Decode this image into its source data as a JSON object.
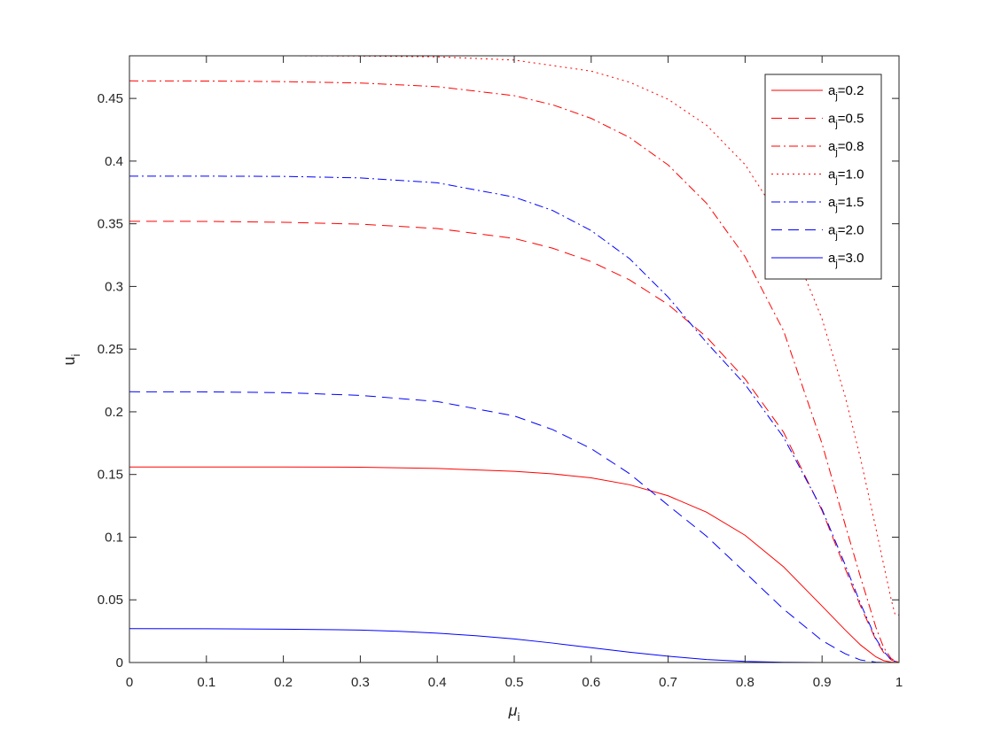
{
  "chart_data": {
    "type": "line",
    "title": "",
    "xlabel": "μ",
    "xlabel_sub": "i",
    "ylabel": "u",
    "ylabel_sub": "i",
    "xlim": [
      0,
      1
    ],
    "ylim": [
      0,
      0.484
    ],
    "grid": false,
    "legend_position": "top-right",
    "x_ticks": [
      0,
      0.1,
      0.2,
      0.3,
      0.4,
      0.5,
      0.6,
      0.7,
      0.8,
      0.9,
      1
    ],
    "x_tick_labels": [
      "0",
      "0.1",
      "0.2",
      "0.3",
      "0.4",
      "0.5",
      "0.6",
      "0.7",
      "0.8",
      "0.9",
      "1"
    ],
    "y_ticks": [
      0,
      0.05,
      0.1,
      0.15,
      0.2,
      0.25,
      0.3,
      0.35,
      0.4,
      0.45
    ],
    "y_tick_labels": [
      "0",
      "0.05",
      "0.1",
      "0.15",
      "0.2",
      "0.25",
      "0.3",
      "0.35",
      "0.4",
      "0.45"
    ],
    "series": [
      {
        "name": "a_j=0.2",
        "legend_prefix": "a",
        "legend_sub": "j",
        "legend_value": "=0.2",
        "color": "#ff0000",
        "dash": "solid",
        "x": [
          0,
          0.1,
          0.2,
          0.3,
          0.4,
          0.5,
          0.55,
          0.6,
          0.65,
          0.7,
          0.75,
          0.8,
          0.85,
          0.9,
          0.93,
          0.95,
          0.97,
          0.98,
          0.99,
          1.0
        ],
        "y": [
          0.156,
          0.156,
          0.156,
          0.1558,
          0.1548,
          0.1525,
          0.1505,
          0.1473,
          0.1418,
          0.133,
          0.1199,
          0.1015,
          0.0763,
          0.045,
          0.026,
          0.014,
          0.0045,
          0.0015,
          0.0003,
          0.0
        ]
      },
      {
        "name": "a_j=0.5",
        "legend_prefix": "a",
        "legend_sub": "j",
        "legend_value": "=0.5",
        "color": "#ff0000",
        "dash": "long-dash",
        "x": [
          0,
          0.1,
          0.2,
          0.3,
          0.4,
          0.5,
          0.55,
          0.6,
          0.65,
          0.7,
          0.75,
          0.8,
          0.85,
          0.9,
          0.93,
          0.95,
          0.97,
          0.98,
          0.99,
          1.0
        ],
        "y": [
          0.352,
          0.3519,
          0.3512,
          0.3497,
          0.3462,
          0.3383,
          0.3305,
          0.3198,
          0.3052,
          0.2856,
          0.2596,
          0.2262,
          0.1837,
          0.1212,
          0.075,
          0.045,
          0.018,
          0.008,
          0.002,
          0.0
        ]
      },
      {
        "name": "a_j=0.8",
        "legend_prefix": "a",
        "legend_sub": "j",
        "legend_value": "=0.8",
        "color": "#ff0000",
        "dash": "dash-dot",
        "x": [
          0,
          0.1,
          0.2,
          0.3,
          0.4,
          0.5,
          0.55,
          0.6,
          0.65,
          0.7,
          0.75,
          0.8,
          0.85,
          0.9,
          0.93,
          0.95,
          0.97,
          0.98,
          0.99,
          1.0
        ],
        "y": [
          0.464,
          0.4639,
          0.4634,
          0.4623,
          0.4594,
          0.4522,
          0.4449,
          0.4341,
          0.4188,
          0.3969,
          0.3663,
          0.3237,
          0.2646,
          0.1745,
          0.11,
          0.068,
          0.028,
          0.012,
          0.003,
          0.0
        ]
      },
      {
        "name": "a_j=1.0",
        "legend_prefix": "a",
        "legend_sub": "j",
        "legend_value": "=1.0",
        "color": "#ff0000",
        "dash": "dotted",
        "x": [
          0,
          0.1,
          0.2,
          0.3,
          0.4,
          0.5,
          0.6,
          0.65,
          0.7,
          0.75,
          0.8,
          0.85,
          0.9,
          0.93,
          0.95,
          0.97,
          0.98,
          0.99,
          0.995,
          1.0
        ],
        "y": [
          0.484,
          0.484,
          0.484,
          0.4838,
          0.4832,
          0.4806,
          0.4718,
          0.4629,
          0.4493,
          0.4286,
          0.3972,
          0.3495,
          0.2741,
          0.2123,
          0.1627,
          0.1069,
          0.0782,
          0.0498,
          0.038,
          0.038
        ]
      },
      {
        "name": "a_j=1.5",
        "legend_prefix": "a",
        "legend_sub": "j",
        "legend_value": "=1.5",
        "color": "#0000ff",
        "dash": "dash-dot",
        "x": [
          0,
          0.1,
          0.2,
          0.3,
          0.4,
          0.5,
          0.55,
          0.6,
          0.65,
          0.7,
          0.75,
          0.8,
          0.85,
          0.9,
          0.93,
          0.95,
          0.97,
          0.98,
          0.99,
          1.0
        ],
        "y": [
          0.388,
          0.388,
          0.3878,
          0.3866,
          0.3827,
          0.3713,
          0.3606,
          0.3446,
          0.3221,
          0.2915,
          0.2552,
          0.2218,
          0.1797,
          0.1222,
          0.078,
          0.047,
          0.019,
          0.009,
          0.002,
          0.0
        ]
      },
      {
        "name": "a_j=2.0",
        "legend_prefix": "a",
        "legend_sub": "j",
        "legend_value": "=2.0",
        "color": "#0000ff",
        "dash": "long-dash",
        "x": [
          0,
          0.1,
          0.2,
          0.3,
          0.4,
          0.5,
          0.55,
          0.6,
          0.65,
          0.7,
          0.75,
          0.8,
          0.85,
          0.9,
          0.93,
          0.95,
          0.97,
          0.98,
          1.0
        ],
        "y": [
          0.216,
          0.2159,
          0.2153,
          0.2131,
          0.2082,
          0.1967,
          0.1858,
          0.1706,
          0.1506,
          0.1254,
          0.1007,
          0.0718,
          0.0426,
          0.0175,
          0.007,
          0.002,
          0.0003,
          0.0,
          0.0
        ]
      },
      {
        "name": "a_j=3.0",
        "legend_prefix": "a",
        "legend_sub": "j",
        "legend_value": "=3.0",
        "color": "#0000ff",
        "dash": "solid",
        "x": [
          0,
          0.1,
          0.2,
          0.3,
          0.35,
          0.4,
          0.45,
          0.5,
          0.55,
          0.6,
          0.65,
          0.7,
          0.75,
          0.8,
          0.85,
          0.9,
          0.95,
          1.0
        ],
        "y": [
          0.027,
          0.0269,
          0.0266,
          0.0259,
          0.0249,
          0.0234,
          0.0214,
          0.0188,
          0.0155,
          0.0118,
          0.0082,
          0.005,
          0.0024,
          0.0009,
          0.0002,
          0.0,
          0.0,
          0.0
        ]
      }
    ]
  }
}
